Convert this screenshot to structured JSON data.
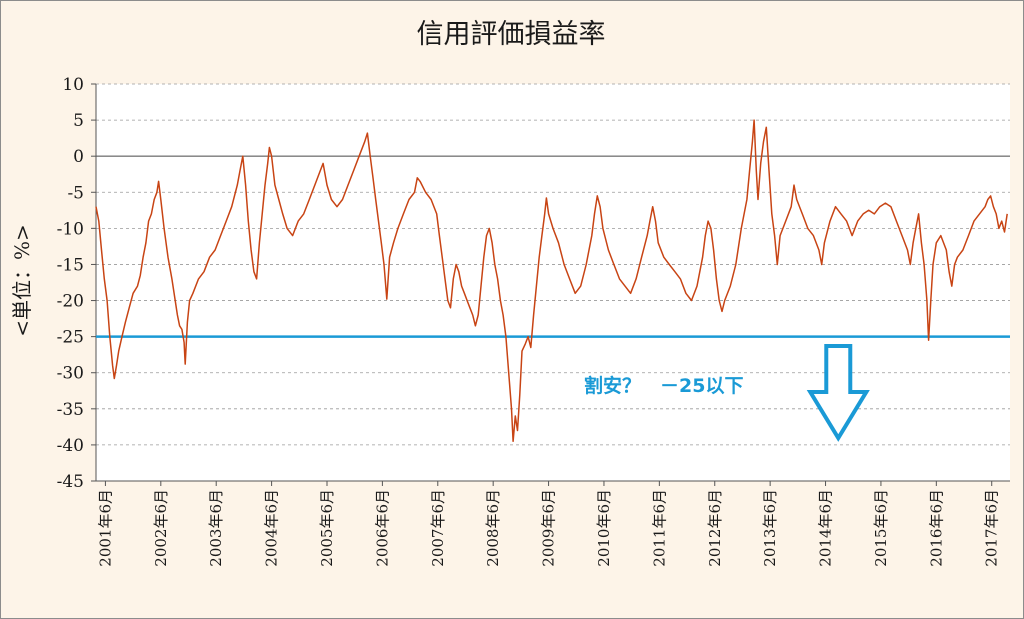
{
  "chart_data": {
    "type": "line",
    "title": "信用評価損益率",
    "ylabel": "<単位：%>",
    "xlabel": "",
    "ylim": [
      -45,
      10
    ],
    "yticks": [
      10,
      5,
      0,
      -5,
      -10,
      -15,
      -20,
      -25,
      -30,
      -35,
      -40,
      -45
    ],
    "xlim": [
      2001.25,
      2017.75
    ],
    "x_tick_labels": [
      "2001年6月",
      "2002年6月",
      "2003年6月",
      "2004年6月",
      "2005年6月",
      "2006年6月",
      "2007年6月",
      "2008年6月",
      "2009年6月",
      "2010年6月",
      "2011年6月",
      "2012年6月",
      "2013年6月",
      "2014年6月",
      "2015年6月",
      "2016年6月",
      "2017年6月"
    ],
    "x_tick_values": [
      2001.42,
      2002.42,
      2003.42,
      2004.42,
      2005.42,
      2006.42,
      2007.42,
      2008.42,
      2009.42,
      2010.42,
      2011.42,
      2012.42,
      2013.42,
      2014.42,
      2015.42,
      2016.42,
      2017.42
    ],
    "grid": true,
    "series": [
      {
        "name": "信用評価損益率",
        "color": "#c84414",
        "points": [
          [
            2001.25,
            -7
          ],
          [
            2001.3,
            -9
          ],
          [
            2001.35,
            -13
          ],
          [
            2001.4,
            -17
          ],
          [
            2001.45,
            -20
          ],
          [
            2001.5,
            -25
          ],
          [
            2001.55,
            -29
          ],
          [
            2001.58,
            -30.8
          ],
          [
            2001.62,
            -29
          ],
          [
            2001.66,
            -27
          ],
          [
            2001.72,
            -25
          ],
          [
            2001.78,
            -23
          ],
          [
            2001.85,
            -21
          ],
          [
            2001.92,
            -19
          ],
          [
            2002.0,
            -18
          ],
          [
            2002.05,
            -16.5
          ],
          [
            2002.1,
            -14
          ],
          [
            2002.15,
            -12
          ],
          [
            2002.2,
            -9
          ],
          [
            2002.25,
            -8
          ],
          [
            2002.3,
            -6
          ],
          [
            2002.35,
            -5
          ],
          [
            2002.38,
            -3.5
          ],
          [
            2002.42,
            -6
          ],
          [
            2002.48,
            -10
          ],
          [
            2002.55,
            -14
          ],
          [
            2002.62,
            -17
          ],
          [
            2002.68,
            -20
          ],
          [
            2002.72,
            -22
          ],
          [
            2002.76,
            -23.5
          ],
          [
            2002.8,
            -24
          ],
          [
            2002.84,
            -25.8
          ],
          [
            2002.86,
            -28.8
          ],
          [
            2002.9,
            -23
          ],
          [
            2002.94,
            -20
          ],
          [
            2003.0,
            -19
          ],
          [
            2003.1,
            -17
          ],
          [
            2003.2,
            -16
          ],
          [
            2003.3,
            -14
          ],
          [
            2003.4,
            -13
          ],
          [
            2003.5,
            -11
          ],
          [
            2003.6,
            -9
          ],
          [
            2003.7,
            -7
          ],
          [
            2003.8,
            -4
          ],
          [
            2003.85,
            -2
          ],
          [
            2003.9,
            0
          ],
          [
            2003.95,
            -4
          ],
          [
            2004.0,
            -9
          ],
          [
            2004.05,
            -13
          ],
          [
            2004.1,
            -16
          ],
          [
            2004.15,
            -17
          ],
          [
            2004.2,
            -12
          ],
          [
            2004.25,
            -8
          ],
          [
            2004.3,
            -4
          ],
          [
            2004.35,
            -1
          ],
          [
            2004.38,
            1.2
          ],
          [
            2004.42,
            0
          ],
          [
            2004.48,
            -4
          ],
          [
            2004.55,
            -6
          ],
          [
            2004.62,
            -8
          ],
          [
            2004.7,
            -10
          ],
          [
            2004.8,
            -11
          ],
          [
            2004.9,
            -9
          ],
          [
            2005.0,
            -8
          ],
          [
            2005.1,
            -6
          ],
          [
            2005.2,
            -4
          ],
          [
            2005.3,
            -2
          ],
          [
            2005.35,
            -1
          ],
          [
            2005.42,
            -4
          ],
          [
            2005.5,
            -6
          ],
          [
            2005.6,
            -7
          ],
          [
            2005.7,
            -6
          ],
          [
            2005.8,
            -4
          ],
          [
            2005.9,
            -2
          ],
          [
            2006.0,
            0
          ],
          [
            2006.1,
            2
          ],
          [
            2006.15,
            3.2
          ],
          [
            2006.2,
            0
          ],
          [
            2006.25,
            -3
          ],
          [
            2006.3,
            -6
          ],
          [
            2006.35,
            -9
          ],
          [
            2006.4,
            -12
          ],
          [
            2006.45,
            -15
          ],
          [
            2006.5,
            -19.8
          ],
          [
            2006.55,
            -14
          ],
          [
            2006.62,
            -12
          ],
          [
            2006.7,
            -10
          ],
          [
            2006.8,
            -8
          ],
          [
            2006.9,
            -6
          ],
          [
            2007.0,
            -5
          ],
          [
            2007.05,
            -3
          ],
          [
            2007.1,
            -3.5
          ],
          [
            2007.2,
            -5
          ],
          [
            2007.3,
            -6
          ],
          [
            2007.4,
            -8
          ],
          [
            2007.45,
            -11
          ],
          [
            2007.5,
            -14
          ],
          [
            2007.55,
            -17
          ],
          [
            2007.6,
            -20
          ],
          [
            2007.65,
            -21
          ],
          [
            2007.7,
            -17
          ],
          [
            2007.75,
            -15
          ],
          [
            2007.8,
            -16
          ],
          [
            2007.85,
            -18
          ],
          [
            2007.9,
            -19
          ],
          [
            2007.95,
            -20
          ],
          [
            2008.0,
            -21
          ],
          [
            2008.05,
            -22
          ],
          [
            2008.1,
            -23.5
          ],
          [
            2008.15,
            -22
          ],
          [
            2008.2,
            -18
          ],
          [
            2008.25,
            -14
          ],
          [
            2008.3,
            -11
          ],
          [
            2008.35,
            -10
          ],
          [
            2008.4,
            -12
          ],
          [
            2008.45,
            -15
          ],
          [
            2008.5,
            -17
          ],
          [
            2008.55,
            -20
          ],
          [
            2008.6,
            -22
          ],
          [
            2008.65,
            -25
          ],
          [
            2008.7,
            -30
          ],
          [
            2008.75,
            -35
          ],
          [
            2008.78,
            -39.5
          ],
          [
            2008.82,
            -36
          ],
          [
            2008.86,
            -38
          ],
          [
            2008.9,
            -33
          ],
          [
            2008.94,
            -27
          ],
          [
            2009.0,
            -26
          ],
          [
            2009.05,
            -25
          ],
          [
            2009.1,
            -26.5
          ],
          [
            2009.15,
            -22
          ],
          [
            2009.2,
            -18
          ],
          [
            2009.25,
            -14
          ],
          [
            2009.3,
            -11
          ],
          [
            2009.35,
            -8
          ],
          [
            2009.38,
            -5.8
          ],
          [
            2009.42,
            -8
          ],
          [
            2009.5,
            -10
          ],
          [
            2009.6,
            -12
          ],
          [
            2009.7,
            -15
          ],
          [
            2009.8,
            -17
          ],
          [
            2009.9,
            -19
          ],
          [
            2010.0,
            -18
          ],
          [
            2010.1,
            -15
          ],
          [
            2010.2,
            -11
          ],
          [
            2010.25,
            -8
          ],
          [
            2010.3,
            -5.5
          ],
          [
            2010.35,
            -7
          ],
          [
            2010.4,
            -10
          ],
          [
            2010.5,
            -13
          ],
          [
            2010.6,
            -15
          ],
          [
            2010.7,
            -17
          ],
          [
            2010.8,
            -18
          ],
          [
            2010.9,
            -19
          ],
          [
            2011.0,
            -17
          ],
          [
            2011.1,
            -14
          ],
          [
            2011.2,
            -11
          ],
          [
            2011.25,
            -9
          ],
          [
            2011.3,
            -7
          ],
          [
            2011.35,
            -9
          ],
          [
            2011.4,
            -12
          ],
          [
            2011.5,
            -14
          ],
          [
            2011.6,
            -15
          ],
          [
            2011.7,
            -16
          ],
          [
            2011.8,
            -17
          ],
          [
            2011.9,
            -19
          ],
          [
            2012.0,
            -20
          ],
          [
            2012.1,
            -18
          ],
          [
            2012.2,
            -14
          ],
          [
            2012.25,
            -11
          ],
          [
            2012.3,
            -9
          ],
          [
            2012.35,
            -10
          ],
          [
            2012.4,
            -13
          ],
          [
            2012.45,
            -17
          ],
          [
            2012.5,
            -20
          ],
          [
            2012.55,
            -21.5
          ],
          [
            2012.6,
            -20
          ],
          [
            2012.7,
            -18
          ],
          [
            2012.8,
            -15
          ],
          [
            2012.9,
            -10
          ],
          [
            2013.0,
            -6
          ],
          [
            2013.05,
            -2
          ],
          [
            2013.1,
            2
          ],
          [
            2013.13,
            5
          ],
          [
            2013.17,
            -2
          ],
          [
            2013.2,
            -6
          ],
          [
            2013.25,
            -1
          ],
          [
            2013.3,
            2
          ],
          [
            2013.35,
            4
          ],
          [
            2013.4,
            -2
          ],
          [
            2013.45,
            -8
          ],
          [
            2013.5,
            -11
          ],
          [
            2013.55,
            -15
          ],
          [
            2013.6,
            -11
          ],
          [
            2013.7,
            -9
          ],
          [
            2013.8,
            -7
          ],
          [
            2013.85,
            -4
          ],
          [
            2013.9,
            -6
          ],
          [
            2014.0,
            -8
          ],
          [
            2014.1,
            -10
          ],
          [
            2014.2,
            -11
          ],
          [
            2014.3,
            -13
          ],
          [
            2014.35,
            -15
          ],
          [
            2014.4,
            -12
          ],
          [
            2014.5,
            -9
          ],
          [
            2014.6,
            -7
          ],
          [
            2014.7,
            -8
          ],
          [
            2014.8,
            -9
          ],
          [
            2014.9,
            -11
          ],
          [
            2015.0,
            -9
          ],
          [
            2015.1,
            -8
          ],
          [
            2015.2,
            -7.5
          ],
          [
            2015.3,
            -8
          ],
          [
            2015.4,
            -7
          ],
          [
            2015.5,
            -6.5
          ],
          [
            2015.6,
            -7
          ],
          [
            2015.7,
            -9
          ],
          [
            2015.8,
            -11
          ],
          [
            2015.9,
            -13
          ],
          [
            2015.95,
            -15
          ],
          [
            2016.0,
            -12
          ],
          [
            2016.05,
            -10
          ],
          [
            2016.1,
            -8
          ],
          [
            2016.15,
            -12
          ],
          [
            2016.2,
            -15
          ],
          [
            2016.25,
            -20
          ],
          [
            2016.28,
            -25.5
          ],
          [
            2016.32,
            -20
          ],
          [
            2016.36,
            -15
          ],
          [
            2016.42,
            -12
          ],
          [
            2016.5,
            -11
          ],
          [
            2016.6,
            -13
          ],
          [
            2016.65,
            -16
          ],
          [
            2016.7,
            -18
          ],
          [
            2016.75,
            -15
          ],
          [
            2016.8,
            -14
          ],
          [
            2016.9,
            -13
          ],
          [
            2017.0,
            -11
          ],
          [
            2017.1,
            -9
          ],
          [
            2017.2,
            -8
          ],
          [
            2017.3,
            -7
          ],
          [
            2017.35,
            -6
          ],
          [
            2017.4,
            -5.5
          ],
          [
            2017.45,
            -7
          ],
          [
            2017.5,
            -8
          ],
          [
            2017.55,
            -10
          ],
          [
            2017.6,
            -9
          ],
          [
            2017.65,
            -10.5
          ],
          [
            2017.7,
            -8
          ]
        ]
      }
    ],
    "reference_line": {
      "value": -25,
      "color": "#1a9ad6"
    },
    "annotation": {
      "text": "割安？　－25以下",
      "color": "#1a9ad6"
    },
    "arrow": {
      "direction": "down",
      "color": "#1a9ad6"
    }
  }
}
